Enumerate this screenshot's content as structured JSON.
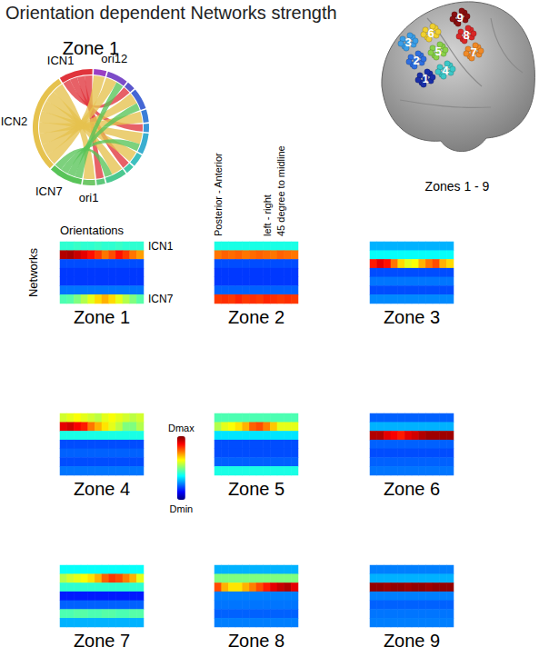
{
  "title": "Orientation dependent Networks strength",
  "chord": {
    "title": "Zone 1",
    "groups": [
      {
        "label": "ori12",
        "color": "#9a3fc4"
      },
      {
        "label": null,
        "color": "#7c4cc8"
      },
      {
        "label": null,
        "color": "#5a56cc"
      },
      {
        "label": null,
        "color": "#4466d4"
      },
      {
        "label": null,
        "color": "#3a7ed8"
      },
      {
        "label": null,
        "color": "#3a96d8"
      },
      {
        "label": null,
        "color": "#3aaed0"
      },
      {
        "label": null,
        "color": "#3ec0c0"
      },
      {
        "label": null,
        "color": "#44c8a8"
      },
      {
        "label": null,
        "color": "#4cc890"
      },
      {
        "label": null,
        "color": "#5ec87a"
      },
      {
        "label": "ori1",
        "color": "#70c868"
      },
      {
        "label": "ICN7",
        "color": "#58c458"
      },
      {
        "label": "ICN2",
        "color": "#e6c24e"
      },
      {
        "label": "ICN1",
        "color": "#e0343c"
      }
    ],
    "links": [
      {
        "source": 14,
        "target": 2,
        "weight": 2
      },
      {
        "source": 14,
        "target": 5,
        "weight": 2
      },
      {
        "source": 14,
        "target": 8,
        "weight": 2
      },
      {
        "source": 14,
        "target": 10,
        "weight": 2
      },
      {
        "source": 13,
        "target": 0,
        "weight": 3
      },
      {
        "source": 13,
        "target": 1,
        "weight": 3
      },
      {
        "source": 13,
        "target": 3,
        "weight": 3
      },
      {
        "source": 13,
        "target": 4,
        "weight": 3
      },
      {
        "source": 13,
        "target": 6,
        "weight": 3
      },
      {
        "source": 13,
        "target": 7,
        "weight": 3
      },
      {
        "source": 13,
        "target": 9,
        "weight": 3
      },
      {
        "source": 13,
        "target": 11,
        "weight": 3
      },
      {
        "source": 12,
        "target": 1,
        "weight": 2
      },
      {
        "source": 12,
        "target": 3,
        "weight": 2
      },
      {
        "source": 12,
        "target": 6,
        "weight": 2
      },
      {
        "source": 12,
        "target": 9,
        "weight": 2
      }
    ]
  },
  "brain": {
    "caption": "Zones 1 - 9",
    "zones": [
      {
        "label": "1",
        "color": "#1a2fa8"
      },
      {
        "label": "2",
        "color": "#2f6fe0"
      },
      {
        "label": "3",
        "color": "#3a9ee8"
      },
      {
        "label": "4",
        "color": "#3cc8c8"
      },
      {
        "label": "5",
        "color": "#8ad24a"
      },
      {
        "label": "6",
        "color": "#f0d030"
      },
      {
        "label": "7",
        "color": "#f08a28"
      },
      {
        "label": "8",
        "color": "#d82828"
      },
      {
        "label": "9",
        "color": "#8a1010"
      }
    ]
  },
  "colorbar": {
    "range": [
      0,
      1
    ],
    "max_label": "Dmax",
    "min_label": "Dmin"
  },
  "chart_data": [
    {
      "type": "heatmap",
      "title": "Zone 1",
      "x_label": "Orientations",
      "y_label": "Networks",
      "tick_labels": "y",
      "row_labels": [
        "ICN1",
        null,
        null,
        null,
        null,
        null,
        "ICN7"
      ],
      "cells": [
        [
          0.42,
          0.42,
          0.43,
          0.42,
          0.42,
          0.43,
          0.42,
          0.42,
          0.43,
          0.42,
          0.42,
          0.42
        ],
        [
          0.95,
          0.96,
          0.93,
          0.9,
          0.86,
          0.82,
          0.76,
          0.8,
          0.86,
          0.82,
          0.76,
          0.72
        ],
        [
          0.2,
          0.2,
          0.2,
          0.2,
          0.2,
          0.2,
          0.2,
          0.2,
          0.2,
          0.2,
          0.2,
          0.2
        ],
        [
          0.18,
          0.18,
          0.18,
          0.18,
          0.18,
          0.18,
          0.18,
          0.18,
          0.18,
          0.18,
          0.18,
          0.18
        ],
        [
          0.18,
          0.18,
          0.18,
          0.18,
          0.18,
          0.18,
          0.18,
          0.18,
          0.18,
          0.18,
          0.18,
          0.18
        ],
        [
          0.24,
          0.24,
          0.24,
          0.24,
          0.24,
          0.24,
          0.24,
          0.24,
          0.24,
          0.24,
          0.24,
          0.24
        ],
        [
          0.45,
          0.46,
          0.5,
          0.55,
          0.6,
          0.66,
          0.7,
          0.66,
          0.6,
          0.55,
          0.5,
          0.46
        ]
      ]
    },
    {
      "type": "heatmap",
      "title": "Zone 2",
      "tick_labels": false,
      "column_annotations": [
        {
          "column": 0,
          "text": "Posterior - Anterior"
        },
        {
          "column": 7,
          "text": "left - right"
        },
        {
          "column": 9,
          "text": "45 degree to midline"
        }
      ],
      "cells": [
        [
          0.4,
          0.4,
          0.4,
          0.4,
          0.4,
          0.4,
          0.4,
          0.4,
          0.4,
          0.4,
          0.4,
          0.4
        ],
        [
          0.76,
          0.78,
          0.77,
          0.78,
          0.76,
          0.77,
          0.78,
          0.77,
          0.76,
          0.78,
          0.77,
          0.76
        ],
        [
          0.2,
          0.2,
          0.2,
          0.2,
          0.2,
          0.2,
          0.2,
          0.2,
          0.2,
          0.2,
          0.2,
          0.2
        ],
        [
          0.18,
          0.18,
          0.18,
          0.18,
          0.18,
          0.18,
          0.18,
          0.18,
          0.18,
          0.18,
          0.18,
          0.18
        ],
        [
          0.18,
          0.18,
          0.18,
          0.18,
          0.18,
          0.18,
          0.18,
          0.18,
          0.18,
          0.18,
          0.18,
          0.18
        ],
        [
          0.22,
          0.22,
          0.22,
          0.22,
          0.22,
          0.22,
          0.22,
          0.22,
          0.22,
          0.22,
          0.22,
          0.22
        ],
        [
          0.82,
          0.83,
          0.82,
          0.84,
          0.82,
          0.83,
          0.82,
          0.84,
          0.83,
          0.82,
          0.83,
          0.82
        ]
      ]
    },
    {
      "type": "heatmap",
      "title": "Zone 3",
      "tick_labels": false,
      "cells": [
        [
          0.3,
          0.3,
          0.3,
          0.3,
          0.3,
          0.3,
          0.3,
          0.3,
          0.3,
          0.3,
          0.3,
          0.3
        ],
        [
          0.38,
          0.38,
          0.38,
          0.38,
          0.38,
          0.38,
          0.38,
          0.38,
          0.38,
          0.38,
          0.38,
          0.38
        ],
        [
          0.85,
          0.9,
          0.86,
          0.76,
          0.66,
          0.6,
          0.62,
          0.7,
          0.76,
          0.8,
          0.7,
          0.66
        ],
        [
          0.2,
          0.2,
          0.2,
          0.2,
          0.2,
          0.2,
          0.2,
          0.2,
          0.2,
          0.2,
          0.2,
          0.2
        ],
        [
          0.24,
          0.24,
          0.24,
          0.24,
          0.24,
          0.24,
          0.24,
          0.24,
          0.24,
          0.24,
          0.24,
          0.24
        ],
        [
          0.2,
          0.2,
          0.2,
          0.2,
          0.2,
          0.2,
          0.2,
          0.2,
          0.2,
          0.2,
          0.2,
          0.2
        ],
        [
          0.26,
          0.26,
          0.26,
          0.26,
          0.26,
          0.26,
          0.26,
          0.26,
          0.26,
          0.26,
          0.26,
          0.26
        ]
      ]
    },
    {
      "type": "heatmap",
      "title": "Zone 4",
      "tick_labels": false,
      "cells": [
        [
          0.58,
          0.6,
          0.62,
          0.6,
          0.58,
          0.56,
          0.6,
          0.62,
          0.6,
          0.58,
          0.56,
          0.58
        ],
        [
          0.9,
          0.92,
          0.88,
          0.85,
          0.76,
          0.7,
          0.65,
          0.6,
          0.56,
          0.5,
          0.5,
          0.55
        ],
        [
          0.4,
          0.4,
          0.4,
          0.4,
          0.4,
          0.4,
          0.4,
          0.4,
          0.4,
          0.4,
          0.4,
          0.4
        ],
        [
          0.2,
          0.2,
          0.2,
          0.2,
          0.2,
          0.2,
          0.2,
          0.2,
          0.2,
          0.2,
          0.2,
          0.2
        ],
        [
          0.22,
          0.22,
          0.22,
          0.22,
          0.22,
          0.22,
          0.22,
          0.22,
          0.22,
          0.22,
          0.22,
          0.22
        ],
        [
          0.2,
          0.2,
          0.2,
          0.2,
          0.2,
          0.2,
          0.2,
          0.2,
          0.2,
          0.2,
          0.2,
          0.2
        ],
        [
          0.24,
          0.24,
          0.24,
          0.24,
          0.24,
          0.24,
          0.24,
          0.24,
          0.24,
          0.24,
          0.24,
          0.24
        ]
      ]
    },
    {
      "type": "heatmap",
      "title": "Zone 5",
      "tick_labels": false,
      "cells": [
        [
          0.45,
          0.45,
          0.45,
          0.45,
          0.45,
          0.45,
          0.45,
          0.45,
          0.45,
          0.45,
          0.45,
          0.45
        ],
        [
          0.55,
          0.6,
          0.62,
          0.65,
          0.7,
          0.78,
          0.8,
          0.75,
          0.68,
          0.6,
          0.6,
          0.6
        ],
        [
          0.35,
          0.35,
          0.35,
          0.35,
          0.35,
          0.35,
          0.35,
          0.35,
          0.35,
          0.35,
          0.35,
          0.35
        ],
        [
          0.2,
          0.2,
          0.2,
          0.2,
          0.2,
          0.2,
          0.2,
          0.2,
          0.2,
          0.2,
          0.2,
          0.2
        ],
        [
          0.2,
          0.2,
          0.2,
          0.2,
          0.2,
          0.2,
          0.2,
          0.2,
          0.2,
          0.2,
          0.2,
          0.2
        ],
        [
          0.22,
          0.22,
          0.22,
          0.22,
          0.22,
          0.22,
          0.22,
          0.22,
          0.22,
          0.22,
          0.22,
          0.22
        ],
        [
          0.4,
          0.4,
          0.4,
          0.4,
          0.4,
          0.4,
          0.4,
          0.4,
          0.4,
          0.4,
          0.4,
          0.4
        ]
      ]
    },
    {
      "type": "heatmap",
      "title": "Zone 6",
      "tick_labels": false,
      "cells": [
        [
          0.22,
          0.22,
          0.22,
          0.22,
          0.22,
          0.22,
          0.22,
          0.22,
          0.22,
          0.22,
          0.22,
          0.22
        ],
        [
          0.3,
          0.3,
          0.3,
          0.3,
          0.3,
          0.3,
          0.3,
          0.3,
          0.3,
          0.3,
          0.3,
          0.3
        ],
        [
          0.95,
          0.95,
          0.9,
          0.88,
          0.85,
          0.9,
          0.92,
          0.95,
          0.97,
          0.97,
          0.97,
          0.97
        ],
        [
          0.22,
          0.22,
          0.22,
          0.22,
          0.22,
          0.22,
          0.22,
          0.22,
          0.22,
          0.22,
          0.22,
          0.22
        ],
        [
          0.2,
          0.2,
          0.2,
          0.2,
          0.2,
          0.2,
          0.2,
          0.2,
          0.2,
          0.2,
          0.2,
          0.2
        ],
        [
          0.22,
          0.22,
          0.22,
          0.22,
          0.22,
          0.22,
          0.22,
          0.22,
          0.22,
          0.22,
          0.22,
          0.22
        ],
        [
          0.24,
          0.24,
          0.24,
          0.24,
          0.24,
          0.24,
          0.24,
          0.24,
          0.24,
          0.24,
          0.24,
          0.24
        ]
      ]
    },
    {
      "type": "heatmap",
      "title": "Zone 7",
      "tick_labels": false,
      "cells": [
        [
          0.38,
          0.38,
          0.38,
          0.38,
          0.38,
          0.38,
          0.38,
          0.38,
          0.38,
          0.38,
          0.38,
          0.38
        ],
        [
          0.55,
          0.58,
          0.6,
          0.62,
          0.65,
          0.7,
          0.78,
          0.82,
          0.8,
          0.75,
          0.7,
          0.6
        ],
        [
          0.42,
          0.42,
          0.42,
          0.42,
          0.42,
          0.42,
          0.42,
          0.42,
          0.42,
          0.42,
          0.42,
          0.42
        ],
        [
          0.15,
          0.15,
          0.15,
          0.15,
          0.15,
          0.15,
          0.15,
          0.15,
          0.15,
          0.15,
          0.15,
          0.15
        ],
        [
          0.22,
          0.22,
          0.22,
          0.22,
          0.22,
          0.22,
          0.22,
          0.22,
          0.22,
          0.22,
          0.22,
          0.22
        ],
        [
          0.45,
          0.45,
          0.46,
          0.46,
          0.45,
          0.45,
          0.46,
          0.46,
          0.45,
          0.45,
          0.46,
          0.46
        ],
        [
          0.3,
          0.3,
          0.3,
          0.3,
          0.3,
          0.3,
          0.3,
          0.3,
          0.3,
          0.3,
          0.3,
          0.3
        ]
      ]
    },
    {
      "type": "heatmap",
      "title": "Zone 8",
      "tick_labels": false,
      "cells": [
        [
          0.3,
          0.3,
          0.3,
          0.3,
          0.3,
          0.3,
          0.3,
          0.3,
          0.3,
          0.3,
          0.3,
          0.3
        ],
        [
          0.5,
          0.5,
          0.5,
          0.5,
          0.5,
          0.5,
          0.5,
          0.5,
          0.5,
          0.5,
          0.5,
          0.5
        ],
        [
          0.8,
          0.7,
          0.65,
          0.65,
          0.7,
          0.75,
          0.8,
          0.85,
          0.9,
          0.93,
          0.95,
          0.9
        ],
        [
          0.25,
          0.25,
          0.25,
          0.25,
          0.25,
          0.25,
          0.25,
          0.25,
          0.25,
          0.25,
          0.25,
          0.25
        ],
        [
          0.24,
          0.24,
          0.24,
          0.24,
          0.24,
          0.24,
          0.24,
          0.24,
          0.24,
          0.24,
          0.24,
          0.24
        ],
        [
          0.22,
          0.22,
          0.22,
          0.22,
          0.22,
          0.22,
          0.22,
          0.22,
          0.22,
          0.22,
          0.22,
          0.22
        ],
        [
          0.25,
          0.25,
          0.25,
          0.25,
          0.25,
          0.25,
          0.25,
          0.25,
          0.25,
          0.25,
          0.25,
          0.25
        ]
      ]
    },
    {
      "type": "heatmap",
      "title": "Zone 9",
      "tick_labels": false,
      "cells": [
        [
          0.25,
          0.25,
          0.25,
          0.25,
          0.25,
          0.25,
          0.25,
          0.25,
          0.25,
          0.25,
          0.25,
          0.25
        ],
        [
          0.3,
          0.3,
          0.3,
          0.3,
          0.3,
          0.3,
          0.3,
          0.3,
          0.3,
          0.3,
          0.3,
          0.3
        ],
        [
          0.98,
          0.98,
          0.97,
          0.98,
          0.98,
          0.97,
          0.98,
          0.98,
          0.97,
          0.98,
          0.98,
          0.98
        ],
        [
          0.25,
          0.25,
          0.25,
          0.25,
          0.25,
          0.25,
          0.25,
          0.25,
          0.25,
          0.25,
          0.25,
          0.25
        ],
        [
          0.22,
          0.22,
          0.22,
          0.22,
          0.22,
          0.22,
          0.22,
          0.22,
          0.22,
          0.22,
          0.22,
          0.22
        ],
        [
          0.24,
          0.24,
          0.24,
          0.24,
          0.24,
          0.24,
          0.24,
          0.24,
          0.24,
          0.24,
          0.24,
          0.24
        ],
        [
          0.25,
          0.25,
          0.25,
          0.25,
          0.25,
          0.25,
          0.25,
          0.25,
          0.25,
          0.25,
          0.25,
          0.25
        ]
      ]
    }
  ]
}
